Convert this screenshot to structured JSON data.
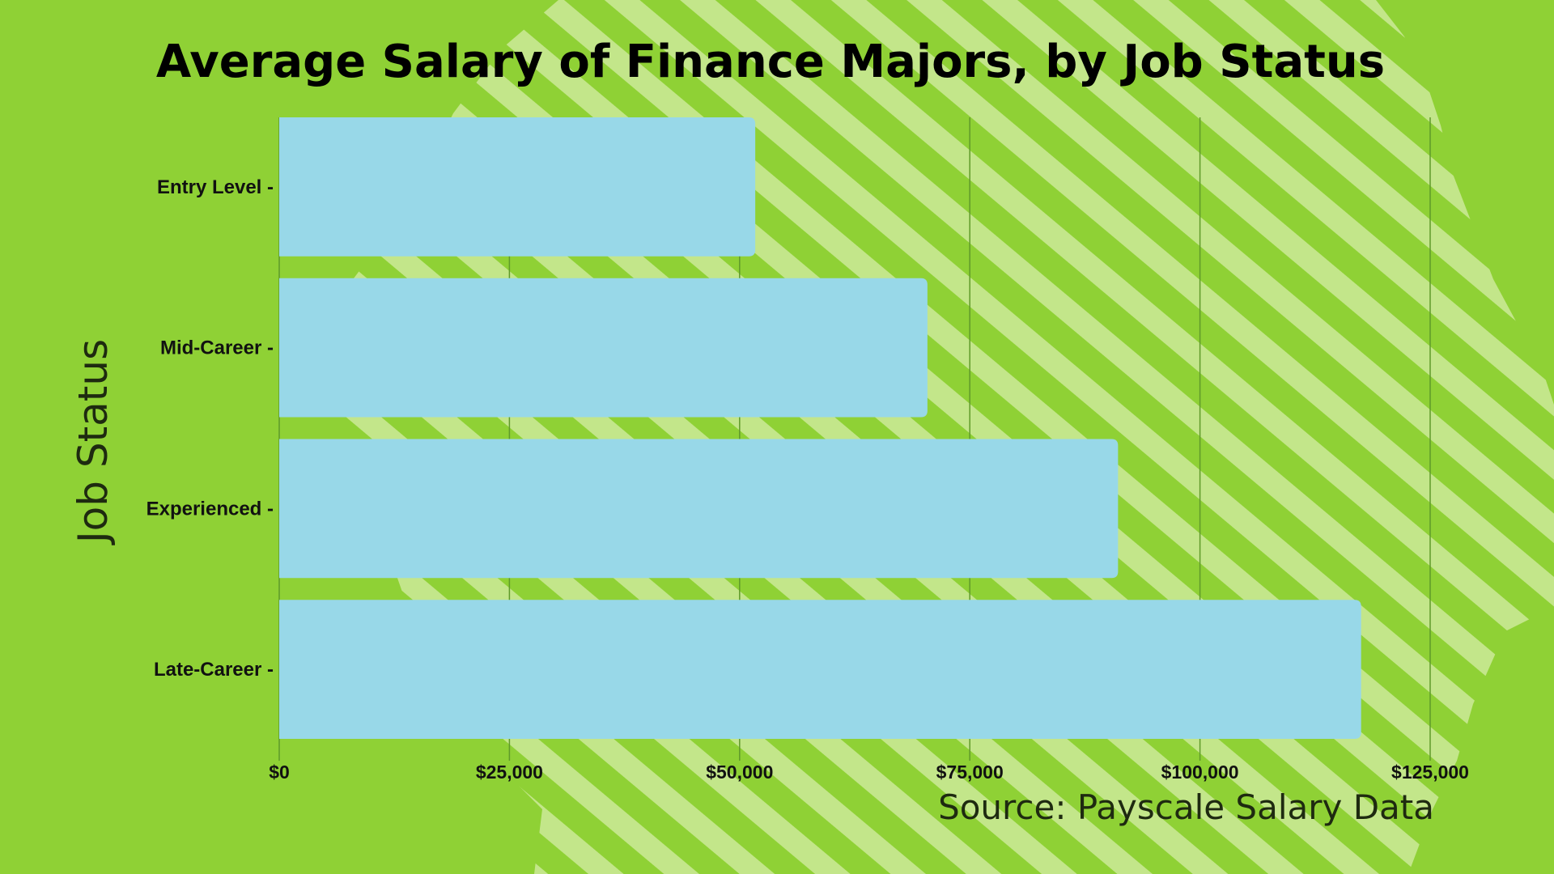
{
  "colors": {
    "background": "#8fd135",
    "stripe": "#c3e68a",
    "bar": "#98d8e8",
    "grid": "#5f9a2a",
    "text": "#111111"
  },
  "chart_data": {
    "type": "bar",
    "orientation": "horizontal",
    "title": "Average Salary of Finance Majors, by Job Status",
    "xlabel": "",
    "ylabel": "Job Status",
    "categories": [
      "Entry Level",
      "Mid-Career",
      "Experienced",
      "Late-Career"
    ],
    "category_labels": [
      "Entry Level -",
      "Mid-Career -",
      "Experienced -",
      "Late-Career -"
    ],
    "values": [
      51700,
      70400,
      91100,
      117500
    ],
    "xlim": [
      0,
      135000
    ],
    "xticks": [
      0,
      25000,
      50000,
      75000,
      100000,
      125000
    ],
    "xtick_labels": [
      "$0",
      "$25,000",
      "$50,000",
      "$75,000",
      "$100,000",
      "$125,000"
    ],
    "grid": "vertical",
    "source": "Source: Payscale Salary Data"
  }
}
